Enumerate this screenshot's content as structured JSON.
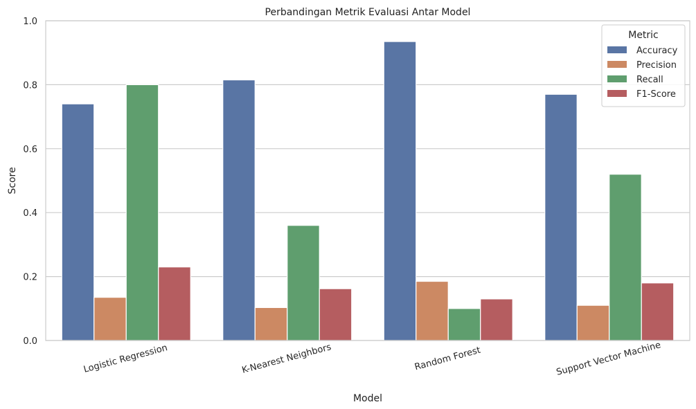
{
  "chart_data": {
    "type": "bar",
    "title": "Perbandingan Metrik Evaluasi Antar Model",
    "xlabel": "Model",
    "ylabel": "Score",
    "ylim": [
      0,
      1.0
    ],
    "yticks": [
      "0.0",
      "0.2",
      "0.4",
      "0.6",
      "0.8",
      "1.0"
    ],
    "ytick_values": [
      0,
      0.2,
      0.4,
      0.6,
      0.8,
      1.0
    ],
    "grid": true,
    "legend_placement": "top-right",
    "legend_title": "Metric",
    "categories": [
      "Logistic Regression",
      "K-Nearest Neighbors",
      "Random Forest",
      "Support Vector Machine"
    ],
    "series": [
      {
        "name": "Accuracy",
        "color": "#5975a4",
        "values": [
          0.74,
          0.815,
          0.935,
          0.77
        ]
      },
      {
        "name": "Precision",
        "color": "#cc8963",
        "values": [
          0.135,
          0.103,
          0.185,
          0.11
        ]
      },
      {
        "name": "Recall",
        "color": "#5f9e6e",
        "values": [
          0.8,
          0.36,
          0.1,
          0.52
        ]
      },
      {
        "name": "F1-Score",
        "color": "#b55d60",
        "values": [
          0.23,
          0.162,
          0.13,
          0.18
        ]
      }
    ]
  }
}
